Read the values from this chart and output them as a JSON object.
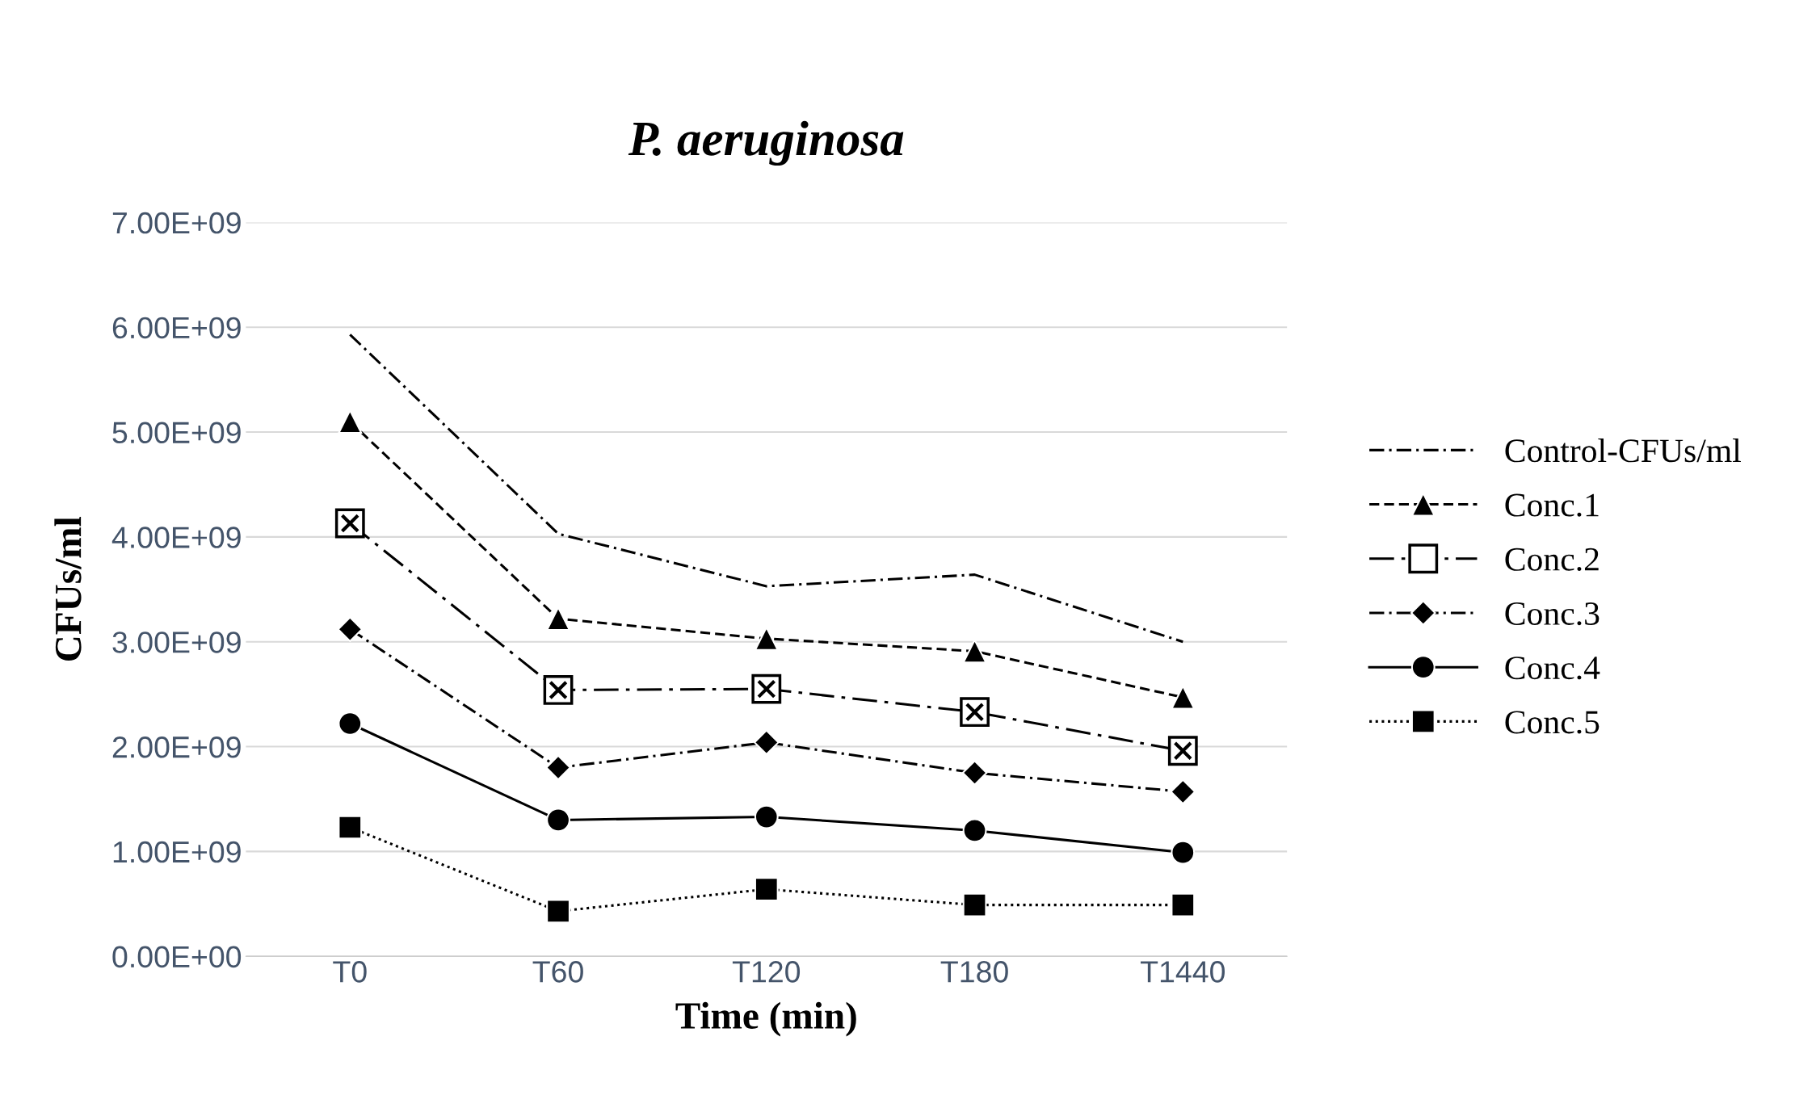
{
  "chart_data": {
    "type": "line",
    "title": "P. aeruginosa",
    "xlabel": "Time (min)",
    "ylabel": "CFUs/ml",
    "categories": [
      "T0",
      "T60",
      "T120",
      "T180",
      "T1440"
    ],
    "series": [
      {
        "name": "Control-CFUs/ml",
        "color": "#000000",
        "line_style": "dashdot",
        "marker": "none",
        "values": [
          5930000000.0,
          4030000000.0,
          3530000000.0,
          3640000000.0,
          3000000000.0
        ]
      },
      {
        "name": "Conc.1",
        "color": "#000000",
        "line_style": "dashed",
        "marker": "triangle",
        "values": [
          5100000000.0,
          3220000000.0,
          3030000000.0,
          2910000000.0,
          2470000000.0
        ]
      },
      {
        "name": "Conc.2",
        "color": "#000000",
        "line_style": "longdashdot",
        "marker": "square_x",
        "values": [
          4130000000.0,
          2540000000.0,
          2550000000.0,
          2330000000.0,
          1960000000.0
        ]
      },
      {
        "name": "Conc.3",
        "color": "#000000",
        "line_style": "dashdot",
        "marker": "diamond",
        "values": [
          3120000000.0,
          1800000000.0,
          2040000000.0,
          1750000000.0,
          1570000000.0
        ]
      },
      {
        "name": "Conc.4",
        "color": "#000000",
        "line_style": "solid",
        "marker": "circle",
        "values": [
          2220000000.0,
          1300000000.0,
          1330000000.0,
          1200000000.0,
          990000000.0
        ]
      },
      {
        "name": "Conc.5",
        "color": "#000000",
        "line_style": "dotted",
        "marker": "square",
        "values": [
          1230000000.0,
          430000000.0,
          640000000.0,
          490000000.0,
          490000000.0
        ]
      }
    ],
    "ylim": [
      0,
      7000000000.0
    ],
    "yticks": [
      {
        "value": 0,
        "label": "0.00E+00"
      },
      {
        "value": 1000000000.0,
        "label": "1.00E+09"
      },
      {
        "value": 2000000000.0,
        "label": "2.00E+09"
      },
      {
        "value": 3000000000.0,
        "label": "3.00E+09"
      },
      {
        "value": 4000000000.0,
        "label": "4.00E+09"
      },
      {
        "value": 5000000000.0,
        "label": "5.00E+09"
      },
      {
        "value": 6000000000.0,
        "label": "6.00E+09"
      },
      {
        "value": 7000000000.0,
        "label": "7.00E+09"
      }
    ],
    "grid": "y",
    "legend": "right"
  }
}
